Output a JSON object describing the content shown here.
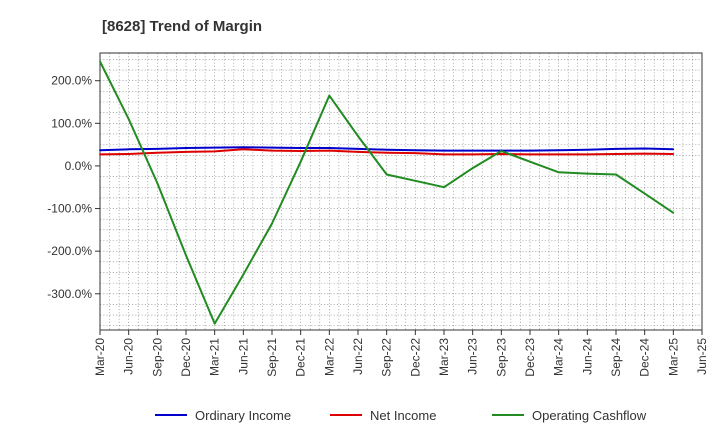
{
  "chart_data": {
    "type": "line",
    "title": "[8628]  Trend of Margin",
    "xlabel": "",
    "ylabel": "",
    "x": [
      "Mar-20",
      "Jun-20",
      "Sep-20",
      "Dec-20",
      "Mar-21",
      "Jun-21",
      "Sep-21",
      "Dec-21",
      "Mar-22",
      "Jun-22",
      "Sep-22",
      "Dec-22",
      "Mar-23",
      "Jun-23",
      "Sep-23",
      "Dec-23",
      "Mar-24",
      "Jun-24",
      "Sep-24",
      "Dec-24",
      "Mar-25",
      "Jun-25"
    ],
    "ylim": [
      -385,
      265
    ],
    "yticks": [
      200,
      100,
      0,
      -100,
      -200,
      -300
    ],
    "ytick_labels": [
      "200.0%",
      "100.0%",
      "0.0%",
      "-100.0%",
      "-200.0%",
      "-300.0%"
    ],
    "grid": true,
    "legend_position": "bottom",
    "series": [
      {
        "name": "Ordinary Income",
        "color": "#0000cc",
        "values": [
          37,
          39,
          40,
          42,
          43,
          44,
          43,
          42,
          42,
          40,
          38,
          37,
          36,
          36,
          36,
          36,
          37,
          38,
          40,
          41,
          39,
          null
        ]
      },
      {
        "name": "Net Income",
        "color": "#dd0000",
        "values": [
          27,
          28,
          31,
          33,
          34,
          39,
          36,
          35,
          36,
          33,
          31,
          30,
          27,
          27,
          28,
          27,
          27,
          27,
          28,
          29,
          28,
          null
        ]
      },
      {
        "name": "Operating Cashflow",
        "color": "#228b22",
        "values": [
          245,
          110,
          -40,
          -210,
          -370,
          -255,
          -135,
          10,
          165,
          70,
          -20,
          -35,
          -50,
          -5,
          35,
          10,
          -15,
          -18,
          -20,
          -65,
          -110,
          null
        ]
      }
    ]
  }
}
